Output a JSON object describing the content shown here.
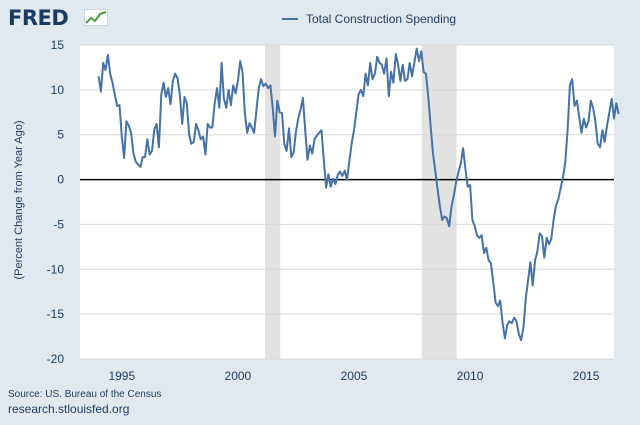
{
  "header": {
    "logo_text": "FRED",
    "logo_icon": "graph-icon"
  },
  "legend": {
    "label": "Total Construction Spending",
    "color": "#4572a7"
  },
  "footer": {
    "source": "Source: US. Bureau of the Census",
    "url": "research.stlouisfed.org"
  },
  "chart_data": {
    "type": "line",
    "title": "Total Construction Spending",
    "xlabel": "",
    "ylabel": "(Percent Change from Year Ago)",
    "xlim": [
      1993.2,
      2016.2
    ],
    "ylim": [
      -20,
      15
    ],
    "x_ticks": [
      1995,
      2000,
      2005,
      2010,
      2015
    ],
    "y_ticks": [
      15,
      10,
      5,
      0,
      -5,
      -10,
      -15,
      -20
    ],
    "grid": true,
    "recessions": [
      [
        2001.17,
        2001.83
      ],
      [
        2007.92,
        2009.42
      ]
    ],
    "series": [
      {
        "name": "Total Construction Spending",
        "color": "#4572a7",
        "points": [
          [
            1994.0,
            11.5
          ],
          [
            1994.1,
            9.8
          ],
          [
            1994.2,
            13.0
          ],
          [
            1994.3,
            12.2
          ],
          [
            1994.4,
            13.9
          ],
          [
            1994.5,
            11.8
          ],
          [
            1994.6,
            10.8
          ],
          [
            1994.7,
            9.5
          ],
          [
            1994.8,
            8.2
          ],
          [
            1994.9,
            8.3
          ],
          [
            1995.0,
            4.8
          ],
          [
            1995.1,
            2.4
          ],
          [
            1995.2,
            6.5
          ],
          [
            1995.3,
            6.0
          ],
          [
            1995.4,
            5.2
          ],
          [
            1995.5,
            3.0
          ],
          [
            1995.6,
            2.0
          ],
          [
            1995.7,
            1.7
          ],
          [
            1995.8,
            1.4
          ],
          [
            1995.9,
            2.5
          ],
          [
            1996.0,
            2.5
          ],
          [
            1996.1,
            4.5
          ],
          [
            1996.2,
            2.8
          ],
          [
            1996.3,
            3.2
          ],
          [
            1996.4,
            5.6
          ],
          [
            1996.5,
            6.2
          ],
          [
            1996.6,
            3.6
          ],
          [
            1996.7,
            9.5
          ],
          [
            1996.8,
            10.8
          ],
          [
            1996.9,
            9.2
          ],
          [
            1997.0,
            10.2
          ],
          [
            1997.1,
            8.4
          ],
          [
            1997.2,
            11.0
          ],
          [
            1997.3,
            11.8
          ],
          [
            1997.4,
            11.3
          ],
          [
            1997.5,
            9.5
          ],
          [
            1997.6,
            6.2
          ],
          [
            1997.7,
            9.2
          ],
          [
            1997.8,
            8.5
          ],
          [
            1997.9,
            5.0
          ],
          [
            1998.0,
            4.0
          ],
          [
            1998.1,
            4.2
          ],
          [
            1998.2,
            6.2
          ],
          [
            1998.3,
            5.5
          ],
          [
            1998.4,
            4.5
          ],
          [
            1998.5,
            4.8
          ],
          [
            1998.6,
            2.8
          ],
          [
            1998.7,
            6.2
          ],
          [
            1998.8,
            5.8
          ],
          [
            1998.9,
            5.8
          ],
          [
            1999.0,
            8.5
          ],
          [
            1999.1,
            10.2
          ],
          [
            1999.2,
            8.0
          ],
          [
            1999.3,
            13.0
          ],
          [
            1999.4,
            9.0
          ],
          [
            1999.5,
            8.0
          ],
          [
            1999.6,
            10.0
          ],
          [
            1999.7,
            8.3
          ],
          [
            1999.8,
            10.5
          ],
          [
            1999.9,
            9.6
          ],
          [
            2000.0,
            11.0
          ],
          [
            2000.1,
            13.2
          ],
          [
            2000.2,
            12.0
          ],
          [
            2000.3,
            7.5
          ],
          [
            2000.4,
            5.2
          ],
          [
            2000.5,
            6.3
          ],
          [
            2000.6,
            5.8
          ],
          [
            2000.7,
            5.2
          ],
          [
            2000.8,
            7.8
          ],
          [
            2000.9,
            10.2
          ],
          [
            2001.0,
            11.2
          ],
          [
            2001.1,
            10.4
          ],
          [
            2001.2,
            10.7
          ],
          [
            2001.3,
            10.2
          ],
          [
            2001.4,
            10.5
          ],
          [
            2001.5,
            8.0
          ],
          [
            2001.6,
            4.8
          ],
          [
            2001.7,
            8.8
          ],
          [
            2001.8,
            7.5
          ],
          [
            2001.9,
            7.4
          ],
          [
            2002.0,
            4.0
          ],
          [
            2002.1,
            3.2
          ],
          [
            2002.2,
            5.7
          ],
          [
            2002.3,
            2.5
          ],
          [
            2002.4,
            3.0
          ],
          [
            2002.5,
            5.3
          ],
          [
            2002.6,
            6.8
          ],
          [
            2002.7,
            7.8
          ],
          [
            2002.8,
            9.1
          ],
          [
            2002.9,
            5.5
          ],
          [
            2003.0,
            2.2
          ],
          [
            2003.1,
            3.8
          ],
          [
            2003.2,
            2.9
          ],
          [
            2003.3,
            4.5
          ],
          [
            2003.4,
            4.9
          ],
          [
            2003.5,
            5.2
          ],
          [
            2003.6,
            5.5
          ],
          [
            2003.7,
            2.2
          ],
          [
            2003.8,
            -0.9
          ],
          [
            2003.9,
            0.6
          ],
          [
            2004.0,
            -0.8
          ],
          [
            2004.1,
            0.1
          ],
          [
            2004.2,
            -0.5
          ],
          [
            2004.3,
            0.5
          ],
          [
            2004.4,
            0.9
          ],
          [
            2004.5,
            0.4
          ],
          [
            2004.6,
            1.0
          ],
          [
            2004.7,
            0.0
          ],
          [
            2004.8,
            2.0
          ],
          [
            2004.9,
            4.0
          ],
          [
            2005.0,
            5.5
          ],
          [
            2005.1,
            7.5
          ],
          [
            2005.2,
            9.5
          ],
          [
            2005.3,
            10.0
          ],
          [
            2005.4,
            9.3
          ],
          [
            2005.5,
            11.8
          ],
          [
            2005.6,
            10.5
          ],
          [
            2005.7,
            13.0
          ],
          [
            2005.8,
            11.2
          ],
          [
            2005.9,
            11.8
          ],
          [
            2006.0,
            13.7
          ],
          [
            2006.1,
            13.0
          ],
          [
            2006.2,
            12.8
          ],
          [
            2006.3,
            11.8
          ],
          [
            2006.4,
            13.5
          ],
          [
            2006.5,
            9.3
          ],
          [
            2006.6,
            12.0
          ],
          [
            2006.7,
            10.8
          ],
          [
            2006.8,
            14.0
          ],
          [
            2006.9,
            12.8
          ],
          [
            2007.0,
            11.0
          ],
          [
            2007.1,
            12.8
          ],
          [
            2007.2,
            11.0
          ],
          [
            2007.3,
            11.2
          ],
          [
            2007.4,
            13.0
          ],
          [
            2007.5,
            11.5
          ],
          [
            2007.6,
            13.0
          ],
          [
            2007.7,
            14.6
          ],
          [
            2007.8,
            13.2
          ],
          [
            2007.9,
            14.3
          ],
          [
            2008.0,
            12.0
          ],
          [
            2008.1,
            11.8
          ],
          [
            2008.2,
            9.2
          ],
          [
            2008.3,
            6.0
          ],
          [
            2008.4,
            3.0
          ],
          [
            2008.5,
            1.0
          ],
          [
            2008.6,
            -1.0
          ],
          [
            2008.7,
            -3.0
          ],
          [
            2008.8,
            -4.5
          ],
          [
            2008.9,
            -4.1
          ],
          [
            2009.0,
            -4.3
          ],
          [
            2009.1,
            -5.2
          ],
          [
            2009.2,
            -3.0
          ],
          [
            2009.3,
            -1.8
          ],
          [
            2009.4,
            -0.3
          ],
          [
            2009.5,
            0.8
          ],
          [
            2009.6,
            1.8
          ],
          [
            2009.7,
            3.5
          ],
          [
            2009.8,
            1.2
          ],
          [
            2009.9,
            -0.8
          ],
          [
            2010.0,
            -0.6
          ],
          [
            2010.1,
            -4.5
          ],
          [
            2010.2,
            -5.2
          ],
          [
            2010.3,
            -6.2
          ],
          [
            2010.4,
            -6.5
          ],
          [
            2010.5,
            -6.2
          ],
          [
            2010.6,
            -8.2
          ],
          [
            2010.7,
            -7.6
          ],
          [
            2010.8,
            -9.0
          ],
          [
            2010.9,
            -9.3
          ],
          [
            2011.0,
            -11.5
          ],
          [
            2011.1,
            -13.7
          ],
          [
            2011.2,
            -14.1
          ],
          [
            2011.3,
            -13.5
          ],
          [
            2011.4,
            -16.0
          ],
          [
            2011.5,
            -17.7
          ],
          [
            2011.6,
            -16.2
          ],
          [
            2011.7,
            -15.8
          ],
          [
            2011.8,
            -16.0
          ],
          [
            2011.9,
            -15.4
          ],
          [
            2012.0,
            -15.8
          ],
          [
            2012.1,
            -17.2
          ],
          [
            2012.2,
            -17.9
          ],
          [
            2012.3,
            -16.5
          ],
          [
            2012.4,
            -13.2
          ],
          [
            2012.5,
            -11.2
          ],
          [
            2012.6,
            -9.2
          ],
          [
            2012.7,
            -11.8
          ],
          [
            2012.8,
            -9.0
          ],
          [
            2012.9,
            -8.0
          ],
          [
            2013.0,
            -6.0
          ],
          [
            2013.1,
            -6.3
          ],
          [
            2013.2,
            -8.7
          ],
          [
            2013.3,
            -6.5
          ],
          [
            2013.4,
            -7.2
          ],
          [
            2013.5,
            -6.6
          ],
          [
            2013.6,
            -4.5
          ],
          [
            2013.7,
            -2.9
          ],
          [
            2013.8,
            -2.2
          ],
          [
            2013.9,
            -1.0
          ],
          [
            2014.0,
            0.2
          ],
          [
            2014.1,
            1.8
          ],
          [
            2014.2,
            5.5
          ],
          [
            2014.3,
            10.5
          ],
          [
            2014.4,
            11.2
          ],
          [
            2014.5,
            8.2
          ],
          [
            2014.6,
            8.8
          ],
          [
            2014.7,
            7.0
          ],
          [
            2014.8,
            5.2
          ],
          [
            2014.9,
            6.8
          ],
          [
            2015.0,
            5.8
          ],
          [
            2015.1,
            6.5
          ],
          [
            2015.2,
            8.8
          ],
          [
            2015.3,
            8.0
          ],
          [
            2015.4,
            6.5
          ],
          [
            2015.5,
            4.0
          ],
          [
            2015.6,
            3.6
          ],
          [
            2015.7,
            5.5
          ],
          [
            2015.8,
            4.2
          ],
          [
            2015.9,
            6.0
          ],
          [
            2016.0,
            7.5
          ],
          [
            2016.1,
            9.0
          ],
          [
            2016.2,
            6.8
          ],
          [
            2016.3,
            8.5
          ],
          [
            2016.4,
            7.3
          ]
        ]
      }
    ]
  }
}
